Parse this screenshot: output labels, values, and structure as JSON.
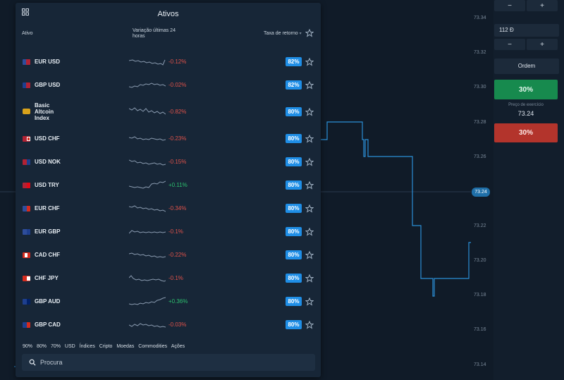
{
  "panel": {
    "title": "Ativos",
    "headers": {
      "asset": "Ativo",
      "variation": "Variação últimas 24 horas",
      "payout": "Taxa de retorno"
    },
    "rows": [
      {
        "name": "EUR USD",
        "change": "-0.12%",
        "dir": "neg",
        "payout": "82%",
        "flag": "eu-us"
      },
      {
        "name": "GBP USD",
        "change": "-0.02%",
        "dir": "neg",
        "payout": "82%",
        "flag": "gb-us"
      },
      {
        "name": "Basic Altcoin Index",
        "change": "-0.82%",
        "dir": "neg",
        "payout": "80%",
        "flag": "crypto"
      },
      {
        "name": "USD CHF",
        "change": "-0.23%",
        "dir": "neg",
        "payout": "80%",
        "flag": "us-ch"
      },
      {
        "name": "USD NOK",
        "change": "-0.15%",
        "dir": "neg",
        "payout": "80%",
        "flag": "us-no"
      },
      {
        "name": "USD TRY",
        "change": "+0.11%",
        "dir": "pos",
        "payout": "80%",
        "flag": "us-tr"
      },
      {
        "name": "EUR CHF",
        "change": "-0.34%",
        "dir": "neg",
        "payout": "80%",
        "flag": "eu-ch"
      },
      {
        "name": "EUR GBP",
        "change": "-0.1%",
        "dir": "neg",
        "payout": "80%",
        "flag": "eu-gb"
      },
      {
        "name": "CAD CHF",
        "change": "-0.22%",
        "dir": "neg",
        "payout": "80%",
        "flag": "ca-ch"
      },
      {
        "name": "CHF JPY",
        "change": "-0.1%",
        "dir": "neg",
        "payout": "80%",
        "flag": "ch-jp"
      },
      {
        "name": "GBP AUD",
        "change": "+0.36%",
        "dir": "pos",
        "payout": "80%",
        "flag": "gb-au"
      },
      {
        "name": "GBP CAD",
        "change": "-0.03%",
        "dir": "neg",
        "payout": "80%",
        "flag": "gb-ca"
      }
    ],
    "filters": [
      "90%",
      "80%",
      "70%",
      "USD",
      "Índices",
      "Cripto",
      "Moedas",
      "Commodities",
      "Ações"
    ],
    "search_placeholder": "Procura"
  },
  "chart": {
    "y_ticks": [
      "73.34",
      "73.32",
      "73.30",
      "73.28",
      "73.26",
      "73.24",
      "73.22",
      "73.20",
      "73.18",
      "73.16",
      "73.14"
    ],
    "current_price": "73.24",
    "line_color": "#2b8fd6"
  },
  "trade": {
    "minus": "−",
    "plus": "+",
    "amount": "112 Đ",
    "order_label": "Ordem",
    "up_payout": "30%",
    "strike_label": "Preço de exercício",
    "strike_value": "73.24",
    "down_payout": "30%"
  },
  "colors": {
    "up": "#178a4e",
    "down": "#b3342c",
    "accent": "#1f8ee6"
  }
}
